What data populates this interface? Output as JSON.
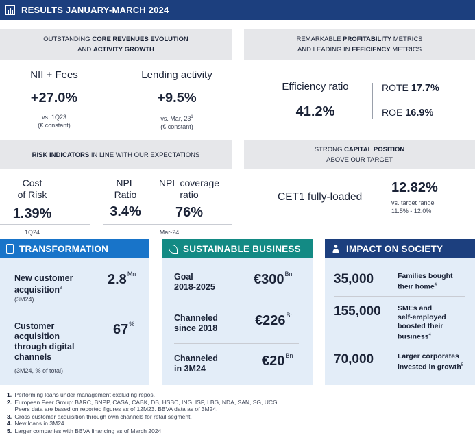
{
  "header": {
    "title": "RESULTS JANUARY-MARCH 2024",
    "icon": "bar-chart-icon"
  },
  "revenues": {
    "title_pre": "OUTSTANDING ",
    "title_b1": "CORE REVENUES EVOLUTION",
    "title_mid": "AND ",
    "title_b2": "ACTIVITY GROWTH",
    "nii": {
      "label": "NII + Fees",
      "value": "+27.0%",
      "note1": "vs. 1Q23",
      "note2": "(€ constant)"
    },
    "lending": {
      "label": "Lending activity",
      "value": "+9.5%",
      "note1": "vs. Mar, 23",
      "note1_sup": "1",
      "note2": "(€ constant)"
    }
  },
  "profitability": {
    "title_pre": "REMARKABLE ",
    "title_b1": "PROFITABILITY",
    "title_mid1": " METRICS",
    "title_pre2": "AND LEADING IN ",
    "title_b2": "EFFICIENCY",
    "title_post2": " METRICS",
    "efficiency": {
      "label": "Efficiency ratio",
      "value": "41.2%"
    },
    "rote": {
      "label": "ROTE",
      "value": "17.7%"
    },
    "roe": {
      "label": "ROE",
      "value": "16.9%"
    }
  },
  "risk": {
    "title_b": "RISK INDICATORS",
    "title_post": " IN LINE WITH OUR EXPECTATIONS",
    "cost": {
      "label1": "Cost",
      "label2": "of Risk",
      "value": "1.39%",
      "period": "1Q24"
    },
    "npl": {
      "label1": "NPL",
      "label2": "Ratio",
      "value": "3.4%"
    },
    "coverage": {
      "label1": "NPL coverage",
      "label2": "ratio",
      "value": "76%"
    },
    "period2": "Mar-24"
  },
  "capital": {
    "title_pre": "STRONG ",
    "title_b": "CAPITAL POSITION",
    "title_line2": "ABOVE OUR TARGET",
    "cet1": {
      "label": "CET1 fully-loaded",
      "value": "12.82%",
      "note1": "vs. target range",
      "note2": "11.5% - 12.0%"
    }
  },
  "transformation": {
    "title": "TRANSFORMATION",
    "color": "#1874c9",
    "icon": "mobile-icon",
    "row1": {
      "label1": "New customer",
      "label2": "acquisition",
      "label_sup": "3",
      "sub": "(3M24)",
      "value": "2.8",
      "unit": "Mn"
    },
    "row2": {
      "label1": "Customer",
      "label2": "acquisition",
      "label3": "through digital",
      "label4": "channels",
      "sub": "(3M24, % of total)",
      "value": "67",
      "unit": "%"
    }
  },
  "sustainable": {
    "title": "SUSTAINABLE BUSINESS",
    "color": "#138a84",
    "icon": "leaf-icon",
    "rows": [
      {
        "label1": "Goal",
        "label2": "2018-2025",
        "value": "€300",
        "unit": "Bn"
      },
      {
        "label1": "Channeled",
        "label2": "since 2018",
        "value": "€226",
        "unit": "Bn"
      },
      {
        "label1": "Channeled",
        "label2": "in 3M24",
        "value": "€20",
        "unit": "Bn"
      }
    ]
  },
  "society": {
    "title": "IMPACT ON SOCIETY",
    "color": "#1c3f7e",
    "icon": "people-icon",
    "rows": [
      {
        "value": "35,000",
        "t1": "Families bought",
        "t2": "their home",
        "t3": "",
        "t4": "",
        "sup": "4"
      },
      {
        "value": "155,000",
        "t1": "SMEs and",
        "t2": "self-employed",
        "t3": "boosted their",
        "t4": "business",
        "sup": "4"
      },
      {
        "value": "70,000",
        "t1": "Larger corporates",
        "t2": "invested in growth",
        "t3": "",
        "t4": "",
        "sup": "5"
      }
    ]
  },
  "footnotes": [
    {
      "n": "1.",
      "text": "Performing loans under management excluding repos."
    },
    {
      "n": "2.",
      "text": "European Peer Group: BARC, BNPP, CASA, CABK, DB, HSBC, ING, ISP, LBG, NDA, SAN, SG, UCG."
    },
    {
      "n": "",
      "text": "Peers data are based on reported figures as of 12M23. BBVA data as of 3M24."
    },
    {
      "n": "3.",
      "text": "Gross customer acquisition through own channels for retail segment."
    },
    {
      "n": "4.",
      "text": "New loans in 3M24."
    },
    {
      "n": "5.",
      "text": "Larger companies with BBVA financing as of March 2024."
    }
  ]
}
